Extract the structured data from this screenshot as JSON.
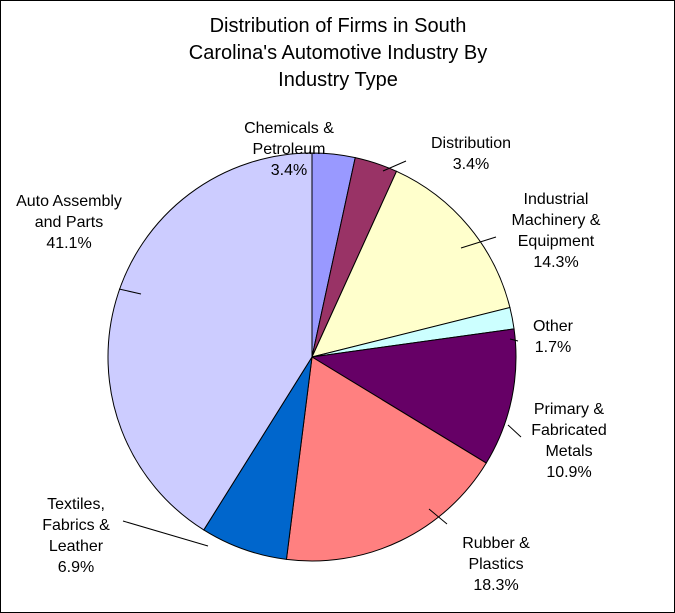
{
  "chart_data": {
    "type": "pie",
    "title": "Distribution of Firms in South Carolina's Automotive Industry By Industry Type",
    "categories": [
      "Chemicals & Petroleum",
      "Distribution",
      "Industrial Machinery & Equipment",
      "Other",
      "Primary & Fabricated Metals",
      "Rubber & Plastics",
      "Textiles, Fabrics & Leather",
      "Auto Assembly and Parts"
    ],
    "values": [
      3.4,
      3.4,
      14.3,
      1.7,
      10.9,
      18.3,
      6.9,
      41.1
    ],
    "value_labels": [
      "3.4%",
      "3.4%",
      "14.3%",
      "1.7%",
      "10.9%",
      "18.3%",
      "6.9%",
      "41.1%"
    ],
    "colors": [
      "#9999ff",
      "#993366",
      "#ffffcc",
      "#ccffff",
      "#660066",
      "#ff8080",
      "#0066cc",
      "#ccccff"
    ]
  }
}
